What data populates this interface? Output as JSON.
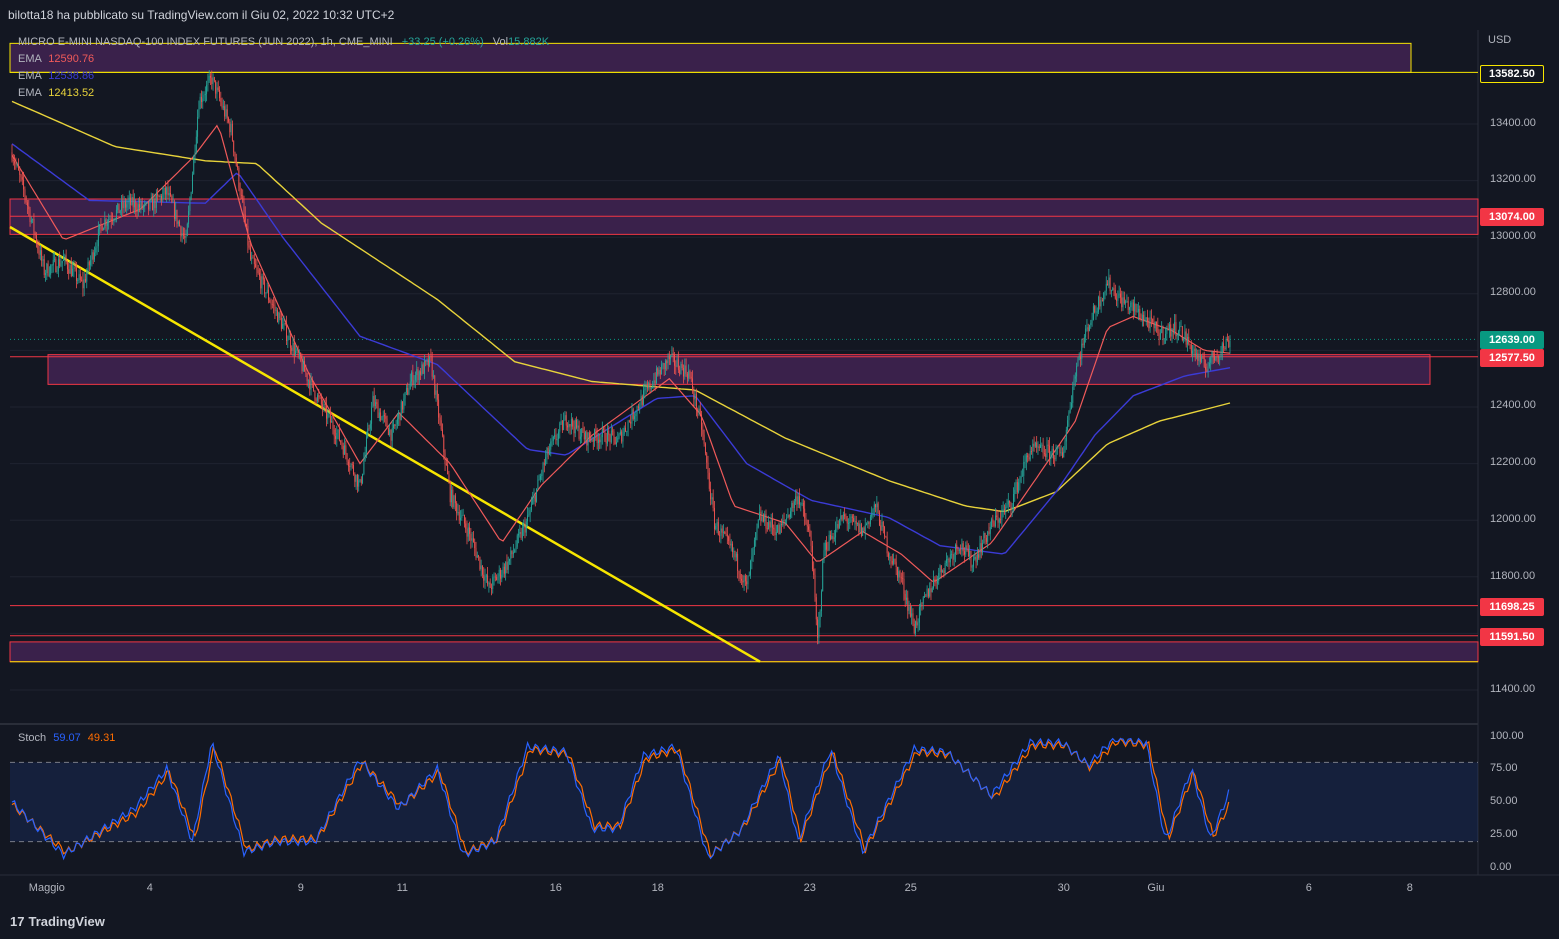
{
  "header": {
    "published": "bilotta18 ha pubblicato su TradingView.com il Giu 02, 2022 10:32 UTC+2"
  },
  "legend": {
    "symbol": "MICRO E-MINI NASDAQ-100 INDEX FUTURES (JUN 2022), 1h, CME_MINI",
    "change": "+33.25 (+0.26%)",
    "vol_label": "Vol",
    "vol_value": "15.882K",
    "ema1_label": "EMA",
    "ema1_value": "12590.76",
    "ema2_label": "EMA",
    "ema2_value": "12538.86",
    "ema3_label": "EMA",
    "ema3_value": "12413.52",
    "stoch_label": "Stoch",
    "stoch_k": "59.07",
    "stoch_d": "49.31"
  },
  "price_axis": {
    "currency": "USD",
    "ticks": [
      "13400.00",
      "13200.00",
      "13000.00",
      "12800.00",
      "12400.00",
      "12200.00",
      "12000.00",
      "11800.00",
      "11400.00"
    ],
    "tags": [
      {
        "label": "13582.50",
        "bg": "#131722",
        "border": "#f7e600",
        "color": "#ffffff"
      },
      {
        "label": "13074.00",
        "bg": "#f23645",
        "border": "#f23645",
        "color": "#ffffff"
      },
      {
        "label": "12639.00",
        "bg": "#089981",
        "border": "#089981",
        "color": "#ffffff"
      },
      {
        "label": "12577.50",
        "bg": "#f23645",
        "border": "#f23645",
        "color": "#ffffff"
      },
      {
        "label": "11698.25",
        "bg": "#f23645",
        "border": "#f23645",
        "color": "#ffffff"
      },
      {
        "label": "11591.50",
        "bg": "#f23645",
        "border": "#f23645",
        "color": "#ffffff"
      }
    ]
  },
  "stoch_axis": {
    "ticks": [
      "100.00",
      "75.00",
      "50.00",
      "25.00",
      "0.00"
    ]
  },
  "time_axis": {
    "labels": [
      "Maggio",
      "4",
      "9",
      "11",
      "16",
      "18",
      "23",
      "25",
      "30",
      "Giu",
      "6",
      "8"
    ]
  },
  "footer": {
    "brand": "TradingView"
  },
  "colors": {
    "background": "#131722",
    "up": "#26a69a",
    "down": "#ef5350",
    "ema_fast": "#f05a5a",
    "ema_mid": "#3b3bd6",
    "ema_slow": "#e8d33b",
    "zone_fill": "#5b2a6e",
    "stoch_k": "#2962ff",
    "stoch_d": "#ff6d00"
  },
  "chart_data": {
    "type": "candlestick",
    "title": "MICRO E-MINI NASDAQ-100 INDEX FUTURES (JUN 2022), 1h, CME_MINI",
    "ylim": [
      11330,
      13700
    ],
    "levels": [
      13582.5,
      13074,
      12639,
      12577.5,
      11698.25,
      11591.5
    ],
    "zones": [
      {
        "from": 13582.5,
        "to": 13685
      },
      {
        "from": 13010,
        "to": 13135
      },
      {
        "from": 12480,
        "to": 12585
      },
      {
        "from": 11500,
        "to": 11570
      }
    ],
    "anchor_closes": [
      [
        0,
        13300
      ],
      [
        10,
        13150
      ],
      [
        25,
        12880
      ],
      [
        40,
        12920
      ],
      [
        55,
        12830
      ],
      [
        70,
        13050
      ],
      [
        90,
        13120
      ],
      [
        105,
        13100
      ],
      [
        120,
        13160
      ],
      [
        135,
        12980
      ],
      [
        145,
        13480
      ],
      [
        155,
        13560
      ],
      [
        170,
        13380
      ],
      [
        185,
        12920
      ],
      [
        200,
        12780
      ],
      [
        215,
        12640
      ],
      [
        235,
        12450
      ],
      [
        255,
        12280
      ],
      [
        270,
        12120
      ],
      [
        280,
        12420
      ],
      [
        295,
        12300
      ],
      [
        310,
        12500
      ],
      [
        325,
        12560
      ],
      [
        340,
        12090
      ],
      [
        355,
        11950
      ],
      [
        370,
        11760
      ],
      [
        385,
        11850
      ],
      [
        400,
        12000
      ],
      [
        415,
        12230
      ],
      [
        430,
        12360
      ],
      [
        445,
        12290
      ],
      [
        460,
        12300
      ],
      [
        470,
        12280
      ],
      [
        485,
        12400
      ],
      [
        500,
        12510
      ],
      [
        510,
        12570
      ],
      [
        525,
        12520
      ],
      [
        535,
        12330
      ],
      [
        545,
        11990
      ],
      [
        560,
        11880
      ],
      [
        570,
        11760
      ],
      [
        580,
        12010
      ],
      [
        595,
        11960
      ],
      [
        610,
        12090
      ],
      [
        620,
        11920
      ],
      [
        625,
        11570
      ],
      [
        630,
        11900
      ],
      [
        645,
        12010
      ],
      [
        660,
        11960
      ],
      [
        670,
        12050
      ],
      [
        680,
        11890
      ],
      [
        690,
        11790
      ],
      [
        700,
        11620
      ],
      [
        710,
        11740
      ],
      [
        720,
        11820
      ],
      [
        735,
        11920
      ],
      [
        745,
        11850
      ],
      [
        760,
        11980
      ],
      [
        775,
        12060
      ],
      [
        790,
        12250
      ],
      [
        805,
        12240
      ],
      [
        815,
        12230
      ],
      [
        825,
        12530
      ],
      [
        835,
        12690
      ],
      [
        850,
        12840
      ],
      [
        860,
        12780
      ],
      [
        875,
        12730
      ],
      [
        890,
        12660
      ],
      [
        905,
        12680
      ],
      [
        915,
        12610
      ],
      [
        925,
        12540
      ],
      [
        935,
        12590
      ],
      [
        945,
        12639
      ]
    ],
    "ema_fast": [
      [
        0,
        13290
      ],
      [
        40,
        12990
      ],
      [
        100,
        13100
      ],
      [
        140,
        13280
      ],
      [
        160,
        13400
      ],
      [
        185,
        12980
      ],
      [
        230,
        12520
      ],
      [
        270,
        12200
      ],
      [
        300,
        12380
      ],
      [
        340,
        12200
      ],
      [
        380,
        11920
      ],
      [
        410,
        12120
      ],
      [
        450,
        12300
      ],
      [
        510,
        12500
      ],
      [
        535,
        12370
      ],
      [
        560,
        12050
      ],
      [
        600,
        11990
      ],
      [
        625,
        11850
      ],
      [
        660,
        11960
      ],
      [
        690,
        11880
      ],
      [
        715,
        11780
      ],
      [
        760,
        11920
      ],
      [
        795,
        12150
      ],
      [
        825,
        12350
      ],
      [
        850,
        12680
      ],
      [
        870,
        12720
      ],
      [
        900,
        12670
      ],
      [
        925,
        12600
      ],
      [
        945,
        12590
      ]
    ],
    "ema_mid": [
      [
        0,
        13330
      ],
      [
        60,
        13130
      ],
      [
        150,
        13120
      ],
      [
        175,
        13230
      ],
      [
        210,
        13000
      ],
      [
        270,
        12650
      ],
      [
        330,
        12550
      ],
      [
        400,
        12250
      ],
      [
        430,
        12230
      ],
      [
        500,
        12430
      ],
      [
        530,
        12440
      ],
      [
        570,
        12200
      ],
      [
        620,
        12070
      ],
      [
        680,
        12010
      ],
      [
        720,
        11910
      ],
      [
        770,
        11880
      ],
      [
        810,
        12100
      ],
      [
        840,
        12300
      ],
      [
        870,
        12440
      ],
      [
        910,
        12510
      ],
      [
        945,
        12539
      ]
    ],
    "ema_slow": [
      [
        0,
        13480
      ],
      [
        80,
        13320
      ],
      [
        150,
        13270
      ],
      [
        190,
        13260
      ],
      [
        240,
        13050
      ],
      [
        330,
        12780
      ],
      [
        390,
        12560
      ],
      [
        450,
        12490
      ],
      [
        530,
        12460
      ],
      [
        600,
        12290
      ],
      [
        680,
        12140
      ],
      [
        740,
        12050
      ],
      [
        770,
        12030
      ],
      [
        810,
        12100
      ],
      [
        850,
        12270
      ],
      [
        890,
        12350
      ],
      [
        945,
        12414
      ]
    ],
    "stoch": {
      "k_anchor": [
        [
          0,
          50
        ],
        [
          40,
          10
        ],
        [
          95,
          45
        ],
        [
          120,
          75
        ],
        [
          140,
          20
        ],
        [
          155,
          95
        ],
        [
          180,
          12
        ],
        [
          205,
          20
        ],
        [
          235,
          20
        ],
        [
          270,
          82
        ],
        [
          300,
          45
        ],
        [
          330,
          75
        ],
        [
          350,
          10
        ],
        [
          375,
          20
        ],
        [
          400,
          92
        ],
        [
          430,
          88
        ],
        [
          450,
          30
        ],
        [
          470,
          30
        ],
        [
          490,
          85
        ],
        [
          515,
          92
        ],
        [
          540,
          8
        ],
        [
          565,
          28
        ],
        [
          595,
          85
        ],
        [
          610,
          20
        ],
        [
          635,
          90
        ],
        [
          660,
          12
        ],
        [
          700,
          90
        ],
        [
          725,
          88
        ],
        [
          760,
          55
        ],
        [
          790,
          95
        ],
        [
          815,
          95
        ],
        [
          835,
          78
        ],
        [
          855,
          98
        ],
        [
          880,
          95
        ],
        [
          895,
          20
        ],
        [
          915,
          75
        ],
        [
          930,
          22
        ],
        [
          945,
          59
        ]
      ],
      "d_anchor": [
        [
          0,
          48
        ],
        [
          42,
          12
        ],
        [
          97,
          42
        ],
        [
          122,
          73
        ],
        [
          142,
          22
        ],
        [
          157,
          93
        ],
        [
          182,
          14
        ],
        [
          207,
          22
        ],
        [
          237,
          22
        ],
        [
          272,
          80
        ],
        [
          302,
          47
        ],
        [
          332,
          73
        ],
        [
          352,
          12
        ],
        [
          377,
          22
        ],
        [
          402,
          90
        ],
        [
          432,
          86
        ],
        [
          452,
          32
        ],
        [
          472,
          32
        ],
        [
          492,
          83
        ],
        [
          517,
          90
        ],
        [
          542,
          10
        ],
        [
          567,
          30
        ],
        [
          597,
          83
        ],
        [
          612,
          22
        ],
        [
          637,
          88
        ],
        [
          662,
          14
        ],
        [
          702,
          88
        ],
        [
          727,
          86
        ],
        [
          762,
          53
        ],
        [
          792,
          93
        ],
        [
          817,
          93
        ],
        [
          837,
          76
        ],
        [
          857,
          96
        ],
        [
          882,
          93
        ],
        [
          897,
          22
        ],
        [
          917,
          73
        ],
        [
          932,
          24
        ],
        [
          945,
          49
        ]
      ]
    }
  }
}
